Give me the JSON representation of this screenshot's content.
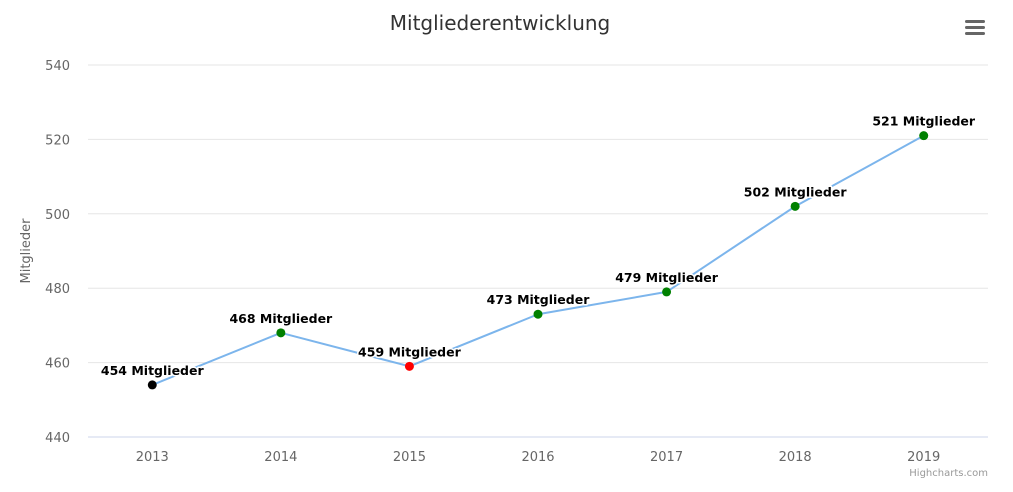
{
  "chart_data": {
    "type": "line",
    "title": "Mitgliederentwicklung",
    "xlabel": "",
    "ylabel": "Mitglieder",
    "categories": [
      "2013",
      "2014",
      "2015",
      "2016",
      "2017",
      "2018",
      "2019"
    ],
    "series": [
      {
        "values": [
          454,
          468,
          459,
          473,
          479,
          502,
          521
        ],
        "data_labels": [
          "454 Mitglieder",
          "468 Mitglieder",
          "459 Mitglieder",
          "473 Mitglieder",
          "479 Mitglieder",
          "502 Mitglieder",
          "521 Mitglieder"
        ],
        "marker_colors": [
          "#000000",
          "#008000",
          "#ff0000",
          "#008000",
          "#008000",
          "#008000",
          "#008000"
        ],
        "line_color": "#7cb5ec"
      }
    ],
    "ylim": [
      440,
      540
    ],
    "yticks": [
      440,
      460,
      480,
      500,
      520,
      540
    ],
    "grid": true,
    "legend": "none"
  },
  "credits": "Highcharts.com",
  "menu": {
    "icon": "hamburger-menu-icon"
  },
  "colors": {
    "grid": "#e6e6e6",
    "axis_line": "#ccd6eb",
    "tick_label": "#666666",
    "title": "#333333",
    "credits": "#999999"
  }
}
